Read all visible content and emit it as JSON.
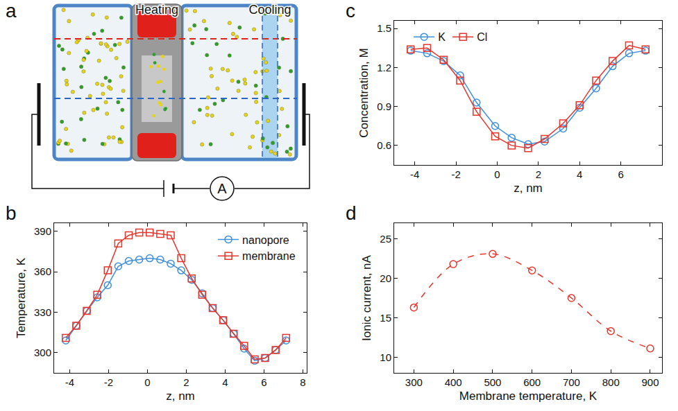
{
  "diagram": {
    "panel": "a",
    "heating": "Heating",
    "cooling": "Cooling",
    "meter": "A"
  },
  "chart_data": [
    {
      "panel": "b",
      "type": "line",
      "x_label": "z, nm",
      "y_label": "Temperature, K",
      "xlim": [
        -4.8,
        8.2
      ],
      "xticks": [
        -4,
        -2,
        0,
        2,
        4,
        6,
        8
      ],
      "ylim": [
        285,
        396
      ],
      "yticks": [
        300,
        330,
        360,
        390
      ],
      "legend": "upper right",
      "series": [
        {
          "name": "nanopore",
          "color": "#3d8fdc",
          "marker": "circle-open",
          "line_style": "solid",
          "x": [
            -4.2,
            -3.66,
            -3.12,
            -2.58,
            -2.04,
            -1.5,
            -0.96,
            -0.42,
            0.12,
            0.66,
            1.2,
            1.74,
            2.28,
            2.82,
            3.36,
            3.9,
            4.44,
            4.98,
            5.52,
            6.06,
            6.6,
            7.14
          ],
          "values": [
            309,
            320,
            331,
            341,
            350,
            364,
            368,
            369,
            370,
            369,
            366,
            361,
            354,
            344,
            333,
            324,
            314,
            303,
            294,
            296,
            302,
            309
          ]
        },
        {
          "name": "membrane",
          "color": "#e8352c",
          "marker": "square-open",
          "line_style": "solid",
          "x": [
            -4.2,
            -3.66,
            -3.12,
            -2.58,
            -2.04,
            -1.5,
            -0.96,
            -0.42,
            0.12,
            0.66,
            1.2,
            1.74,
            2.28,
            2.82,
            3.36,
            3.9,
            4.44,
            4.98,
            5.52,
            6.06,
            6.6,
            7.14
          ],
          "values": [
            311,
            320,
            331,
            343,
            361,
            381,
            387,
            389,
            389,
            388,
            387,
            370,
            355,
            343,
            333,
            324,
            314,
            305,
            295,
            296,
            302,
            311
          ]
        }
      ]
    },
    {
      "panel": "c",
      "type": "line",
      "x_label": "z, nm",
      "y_label": "Concentration, M",
      "xlim": [
        -5,
        8
      ],
      "xticks": [
        -4,
        -2,
        0,
        2,
        4,
        6
      ],
      "ylim": [
        0.45,
        1.56
      ],
      "yticks": [
        0.6,
        0.9,
        1.2,
        1.5
      ],
      "legend": "upper left",
      "series": [
        {
          "name": "K",
          "color": "#3d8fdc",
          "marker": "circle-open",
          "line_style": "solid",
          "x": [
            -4.2,
            -3.4,
            -2.6,
            -1.8,
            -1.0,
            -0.1,
            0.7,
            1.5,
            2.3,
            3.2,
            4.0,
            4.8,
            5.6,
            6.4,
            7.2
          ],
          "values": [
            1.33,
            1.31,
            1.25,
            1.14,
            0.93,
            0.75,
            0.66,
            0.61,
            0.63,
            0.73,
            0.89,
            1.04,
            1.21,
            1.31,
            1.33
          ]
        },
        {
          "name": "Cl",
          "color": "#e8352c",
          "marker": "square-open",
          "line_style": "solid",
          "x": [
            -4.2,
            -3.4,
            -2.6,
            -1.8,
            -1.0,
            -0.1,
            0.7,
            1.5,
            2.3,
            3.2,
            4.0,
            4.8,
            5.6,
            6.4,
            7.2
          ],
          "values": [
            1.34,
            1.35,
            1.26,
            1.1,
            0.86,
            0.67,
            0.6,
            0.58,
            0.65,
            0.77,
            0.91,
            1.1,
            1.25,
            1.37,
            1.34
          ]
        }
      ]
    },
    {
      "panel": "d",
      "type": "line",
      "x_label": "Membrane temperature, K",
      "y_label": "Ionic current, nA",
      "xlim": [
        250,
        930
      ],
      "xticks": [
        300,
        400,
        500,
        600,
        700,
        800,
        900
      ],
      "ylim": [
        8,
        27
      ],
      "yticks": [
        10,
        15,
        20,
        25
      ],
      "series": [
        {
          "color": "#e8352c",
          "marker": "circle-open",
          "line_style": "dashed",
          "x": [
            300,
            400,
            500,
            600,
            700,
            800,
            900
          ],
          "values": [
            16.3,
            21.8,
            23.1,
            21.0,
            17.5,
            13.3,
            11.1
          ]
        }
      ]
    }
  ]
}
